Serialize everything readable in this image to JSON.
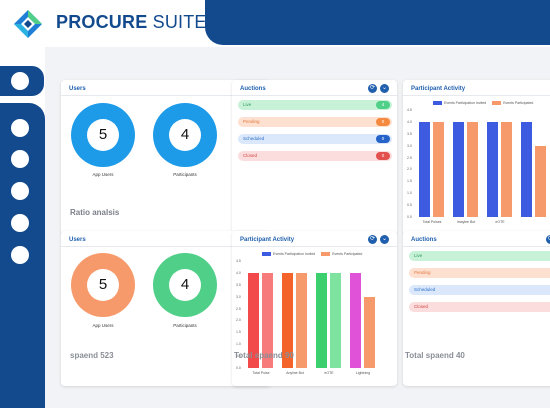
{
  "app": {
    "brand_bold": "PROCURE",
    "brand_rest": " SUITE"
  },
  "colors": {
    "primary": "#134a8e",
    "accent": "#1f5fae",
    "blue": "#1d9be8",
    "orange": "#f79a6b",
    "green": "#4fcf88",
    "red": "#e2514d"
  },
  "card_controls": {
    "refresh_icon": "⟳",
    "expand_icon": "⌄"
  },
  "users_top": {
    "title": "Users",
    "app_users_value": "5",
    "app_users_label": "App Users",
    "participants_value": "4",
    "participants_label": "Participants"
  },
  "auctions_top": {
    "title": "Auctions",
    "items": [
      {
        "label": "Live",
        "count": "4"
      },
      {
        "label": "Pending",
        "count": "0"
      },
      {
        "label": "Scheduled",
        "count": "0"
      },
      {
        "label": "Closed",
        "count": "0"
      }
    ]
  },
  "activity_top": {
    "title": "Participant Activity",
    "legend": [
      "Events Participation Invited",
      "Events Participated"
    ]
  },
  "ratio_label": "Ratio analsis",
  "users_bottom": {
    "title": "Users",
    "app_users_value": "5",
    "app_users_label": "App Users",
    "participants_value": "4",
    "participants_label": "Participants"
  },
  "activity_bottom": {
    "title": "Participant Activity",
    "legend": [
      "Events Participation Invited",
      "Events Participated"
    ]
  },
  "auctions_bottom": {
    "title": "Auctions",
    "items": [
      {
        "label": "Live"
      },
      {
        "label": "Pending"
      },
      {
        "label": "Scheduled"
      },
      {
        "label": "Closed"
      }
    ]
  },
  "footer": {
    "stat1": "spaend 523",
    "stat2": "Total spaend 90",
    "stat3": "Total spaend 40"
  },
  "chart_data": [
    {
      "type": "bar",
      "title": "Participant Activity",
      "categories": [
        "Total Pulses",
        "Imaylee Bot",
        "eOTE",
        ""
      ],
      "series": [
        {
          "name": "Events Participation Invited",
          "values": [
            4.0,
            4.0,
            4.0,
            4.0
          ]
        },
        {
          "name": "Events Participated",
          "values": [
            4.0,
            4.0,
            4.0,
            3.0
          ]
        }
      ],
      "ylim": [
        0,
        4.5
      ],
      "yticks": [
        "4.5",
        "4.0",
        "3.5",
        "3.0",
        "2.5",
        "2.0",
        "1.5",
        "1.0",
        "0.5",
        "0.0"
      ]
    },
    {
      "type": "bar",
      "title": "Participant Activity",
      "categories": [
        "Total Pulse",
        "Anyline Bot",
        "eOTE",
        "Lightning"
      ],
      "series": [
        {
          "name": "Events Participation Invited",
          "values": [
            4.0,
            4.0,
            4.0,
            4.0
          ]
        },
        {
          "name": "Events Participated",
          "values": [
            4.0,
            4.0,
            4.0,
            3.0
          ]
        }
      ],
      "bar_colors": [
        "#f24a4a",
        "#f4642a",
        "#3ccf6e",
        "#e052d8"
      ],
      "second_colors": [
        "#f77b7b",
        "#f79a6b",
        "#7ee39e",
        "#f79a6b"
      ],
      "ylim": [
        0,
        4.5
      ],
      "yticks": [
        "4.5",
        "4.0",
        "3.5",
        "3.0",
        "2.5",
        "2.0",
        "1.5",
        "1.0",
        "0.5",
        "0.0"
      ]
    }
  ]
}
